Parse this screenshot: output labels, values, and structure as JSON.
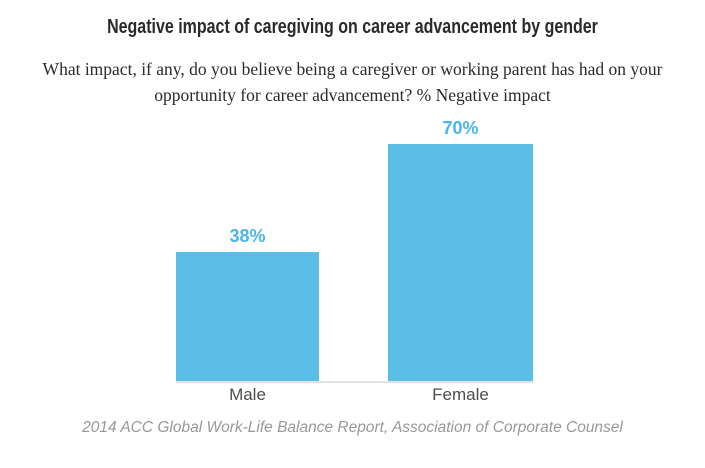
{
  "colors": {
    "background": "#ffffff",
    "bar": "#5bbee7",
    "value_label": "#4ab6e8",
    "title": "#2a2a2a",
    "subtitle": "#2b2b2b",
    "axis_label": "#4d4d4d",
    "source": "#989898",
    "baseline": "#e2e2e2"
  },
  "header": {
    "title": "Negative impact of caregiving on career advancement by gender",
    "subtitle_line1": "What impact, if any, do you believe being a caregiver or working parent has had on your",
    "subtitle_line2": "opportunity for career advancement? % Negative impact"
  },
  "chart_data": {
    "type": "bar",
    "title": "Negative impact of caregiving on career advancement by gender",
    "subtitle": "What impact, if any, do you believe being a caregiver or working parent has had on your opportunity for career advancement? % Negative impact",
    "categories": [
      "Male",
      "Female"
    ],
    "values": [
      38,
      70
    ],
    "value_labels": [
      "38%",
      "70%"
    ],
    "unit": "%",
    "ylim": [
      0,
      70
    ],
    "grid": false,
    "legend": false,
    "orientation": "vertical",
    "source": "2014 ACC Global Work-Life Balance Report, Association of Corporate Counsel"
  },
  "footer": {
    "source": "2014 ACC Global Work-Life Balance Report, Association of Corporate Counsel"
  }
}
